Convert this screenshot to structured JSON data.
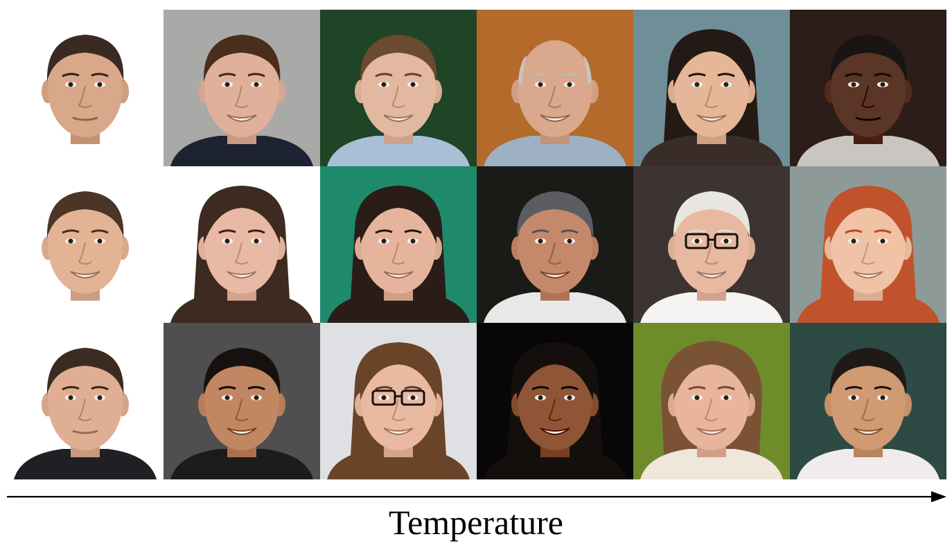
{
  "axis": {
    "label": "Temperature",
    "direction": "left-to-right"
  },
  "faces": [
    {
      "bg": "#ffffff",
      "skin": "#d9a78a",
      "hair": "#3a2a22",
      "hairStyle": "short",
      "glasses": false,
      "shirt": "#ffffff",
      "smile": false
    },
    {
      "bg": "#a9a9a7",
      "skin": "#e0b09a",
      "hair": "#4a2e1d",
      "hairStyle": "short",
      "glasses": false,
      "shirt": "#1d2333",
      "smile": true
    },
    {
      "bg": "#1f4426",
      "skin": "#e2b8a0",
      "hair": "#6b4a2f",
      "hairStyle": "short",
      "glasses": false,
      "shirt": "#a9bfd6",
      "smile": true
    },
    {
      "bg": "#b36a2a",
      "skin": "#d9a88d",
      "hair": "#c9c3bb",
      "hairStyle": "bald",
      "glasses": false,
      "shirt": "#9eb0c3",
      "smile": true
    },
    {
      "bg": "#6f8f98",
      "skin": "#e6b698",
      "hair": "#241a15",
      "hairStyle": "long",
      "glasses": false,
      "shirt": "#3a2d28",
      "smile": true
    },
    {
      "bg": "#2c1d18",
      "skin": "#5b3526",
      "hair": "#1a1412",
      "hairStyle": "short",
      "glasses": false,
      "shirt": "#c9c6c2",
      "smile": false
    },
    {
      "bg": "#ffffff",
      "skin": "#e3b396",
      "hair": "#4b3526",
      "hairStyle": "short",
      "glasses": false,
      "shirt": "#ffffff",
      "smile": true
    },
    {
      "bg": "#ffffff",
      "skin": "#e8b9a4",
      "hair": "#3d2a20",
      "hairStyle": "long",
      "glasses": false,
      "shirt": "#3d2a20",
      "smile": true
    },
    {
      "bg": "#1f8a6b",
      "skin": "#e6b49c",
      "hair": "#2a1d17",
      "hairStyle": "long",
      "glasses": false,
      "shirt": "#2a1d17",
      "smile": true
    },
    {
      "bg": "#1a1a16",
      "skin": "#c4896b",
      "hair": "#5b5d62",
      "hairStyle": "short",
      "glasses": false,
      "shirt": "#e8e8e8",
      "smile": true
    },
    {
      "bg": "#3c3431",
      "skin": "#e9b8a1",
      "hair": "#e8e6e0",
      "hairStyle": "short",
      "glasses": true,
      "shirt": "#f4f4f2",
      "smile": true
    },
    {
      "bg": "#8e9a98",
      "skin": "#f0c2a6",
      "hair": "#c0532b",
      "hairStyle": "long",
      "glasses": false,
      "shirt": "#c0532b",
      "smile": true
    },
    {
      "bg": "#ffffff",
      "skin": "#dfae93",
      "hair": "#3c2b21",
      "hairStyle": "short",
      "glasses": false,
      "shirt": "#1f1f24",
      "smile": false
    },
    {
      "bg": "#4e4f4e",
      "skin": "#c18763",
      "hair": "#16110f",
      "hairStyle": "short",
      "glasses": false,
      "shirt": "#1c1c1e",
      "smile": true
    },
    {
      "bg": "#dfe0e3",
      "skin": "#eab9a2",
      "hair": "#6a4429",
      "hairStyle": "long",
      "glasses": true,
      "shirt": "#6a4429",
      "smile": true
    },
    {
      "bg": "#070707",
      "skin": "#8e5637",
      "hair": "#140f0d",
      "hairStyle": "long",
      "glasses": false,
      "shirt": "#140f0d",
      "smile": true
    },
    {
      "bg": "#6f8c2a",
      "skin": "#e8b59c",
      "hair": "#7a5335",
      "hairStyle": "bob",
      "glasses": false,
      "shirt": "#efe6dc",
      "smile": true
    },
    {
      "bg": "#2e4a44",
      "skin": "#d09a73",
      "hair": "#1f1a18",
      "hairStyle": "short",
      "glasses": false,
      "shirt": "#f0ecec",
      "smile": true
    }
  ]
}
